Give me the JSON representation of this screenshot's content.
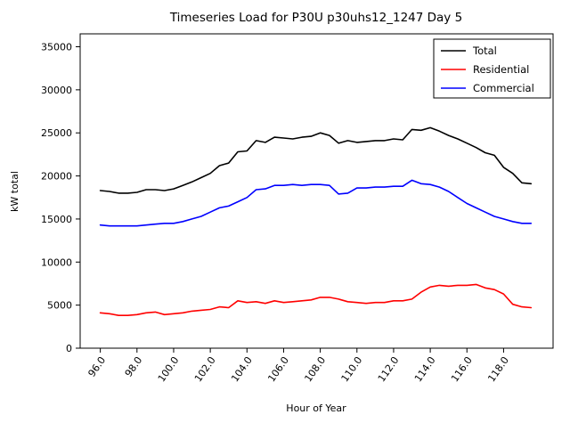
{
  "chart_data": {
    "type": "line",
    "title": "Timeseries Load for P30U p30uhs12_1247  Day 5",
    "xlabel": "Hour of Year",
    "ylabel": "kW total",
    "xlim": [
      94.9,
      120.7
    ],
    "ylim": [
      0,
      36500
    ],
    "xticks": [
      96,
      98,
      100,
      102,
      104,
      106,
      108,
      110,
      112,
      114,
      116,
      118
    ],
    "xtick_labels": [
      "96.0",
      "98.0",
      "100.0",
      "102.0",
      "104.0",
      "106.0",
      "108.0",
      "110.0",
      "112.0",
      "114.0",
      "116.0",
      "118.0"
    ],
    "yticks": [
      0,
      5000,
      10000,
      15000,
      20000,
      25000,
      30000,
      35000
    ],
    "ytick_labels": [
      "0",
      "5000",
      "10000",
      "15000",
      "20000",
      "25000",
      "30000",
      "35000"
    ],
    "grid": false,
    "legend_position": "upper right",
    "x": [
      96,
      96.5,
      97,
      97.5,
      98,
      98.5,
      99,
      99.5,
      100,
      100.5,
      101,
      101.5,
      102,
      102.5,
      103,
      103.5,
      104,
      104.5,
      105,
      105.5,
      106,
      106.5,
      107,
      107.5,
      108,
      108.5,
      109,
      109.5,
      110,
      110.5,
      111,
      111.5,
      112,
      112.5,
      113,
      113.5,
      114,
      114.5,
      115,
      115.5,
      116,
      116.5,
      117,
      117.5,
      118,
      118.5,
      119,
      119.5
    ],
    "series": [
      {
        "name": "Total",
        "color": "#000000",
        "values": [
          18300,
          18200,
          18000,
          18000,
          18100,
          18400,
          18400,
          18300,
          18500,
          18900,
          19300,
          19800,
          20300,
          21200,
          21500,
          22800,
          22900,
          24100,
          23900,
          24500,
          24400,
          24300,
          24500,
          24600,
          25000,
          24700,
          23800,
          24100,
          23900,
          24000,
          24100,
          24100,
          24300,
          24200,
          25400,
          25300,
          25600,
          25200,
          24700,
          24300,
          23800,
          23300,
          22700,
          22400,
          21000,
          20300,
          19200,
          19100
        ]
      },
      {
        "name": "Residential",
        "color": "#ff0000",
        "values": [
          4100,
          4000,
          3800,
          3800,
          3900,
          4100,
          4200,
          3900,
          4000,
          4100,
          4300,
          4400,
          4500,
          4800,
          4700,
          5500,
          5300,
          5400,
          5200,
          5500,
          5300,
          5400,
          5500,
          5600,
          5900,
          5900,
          5700,
          5400,
          5300,
          5200,
          5300,
          5300,
          5500,
          5500,
          5700,
          6500,
          7100,
          7300,
          7200,
          7300,
          7300,
          7400,
          7000,
          6800,
          6300,
          5100,
          4800,
          4700
        ]
      },
      {
        "name": "Commercial",
        "color": "#0000ff",
        "values": [
          14300,
          14200,
          14200,
          14200,
          14200,
          14300,
          14400,
          14500,
          14500,
          14700,
          15000,
          15300,
          15800,
          16300,
          16500,
          17000,
          17500,
          18400,
          18500,
          18900,
          18900,
          19000,
          18900,
          19000,
          19000,
          18900,
          17900,
          18000,
          18600,
          18600,
          18700,
          18700,
          18800,
          18800,
          19500,
          19100,
          19000,
          18700,
          18200,
          17500,
          16800,
          16300,
          15800,
          15300,
          15000,
          14700,
          14500,
          14500
        ]
      }
    ]
  }
}
